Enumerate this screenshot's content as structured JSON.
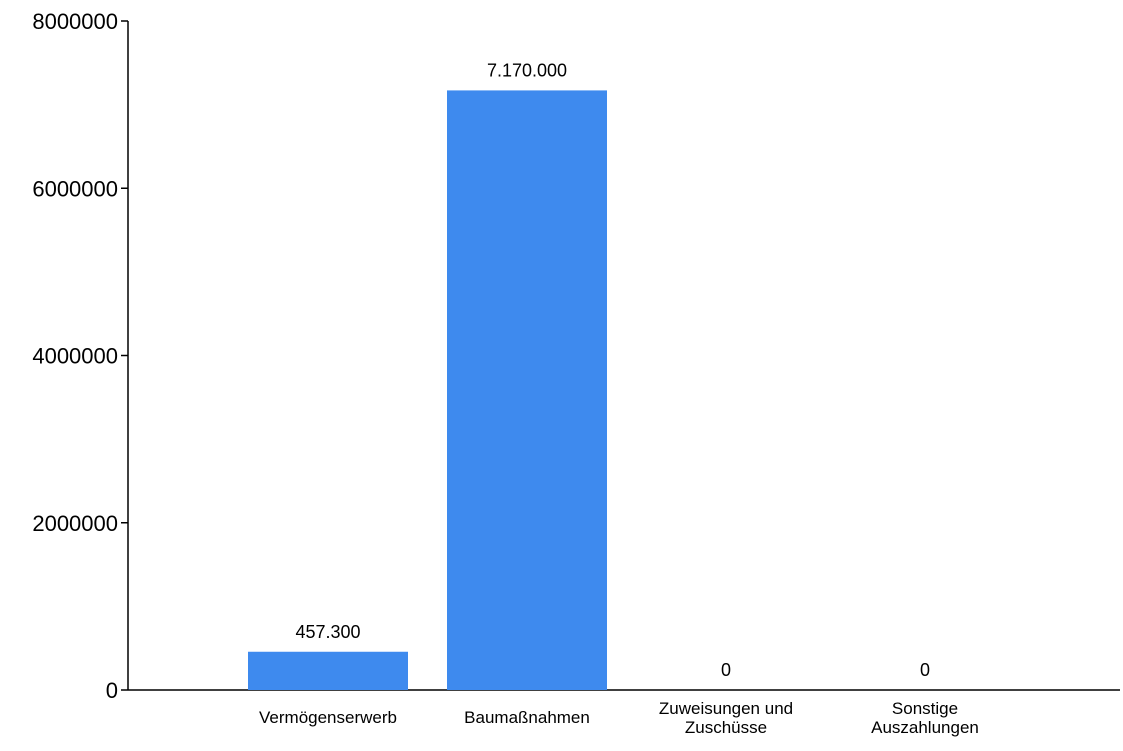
{
  "chart_data": {
    "type": "bar",
    "categories": [
      [
        "Vermögenserwerb"
      ],
      [
        "Baumaßnahmen"
      ],
      [
        "Zuweisungen und",
        "Zuschüsse"
      ],
      [
        "Sonstige",
        "Auszahlungen"
      ]
    ],
    "values": [
      457300,
      7170000,
      0,
      0
    ],
    "value_labels": [
      "457.300",
      "7.170.000",
      "0",
      "0"
    ],
    "y_ticks": [
      0,
      2000000,
      4000000,
      6000000,
      8000000
    ],
    "y_tick_labels": [
      "0",
      "2000000",
      "4000000",
      "6000000",
      "8000000"
    ],
    "ylim": [
      0,
      8000000
    ],
    "grid": false,
    "legend": "none",
    "bar_color": "#3e8aee",
    "axis_color": "#000000"
  }
}
